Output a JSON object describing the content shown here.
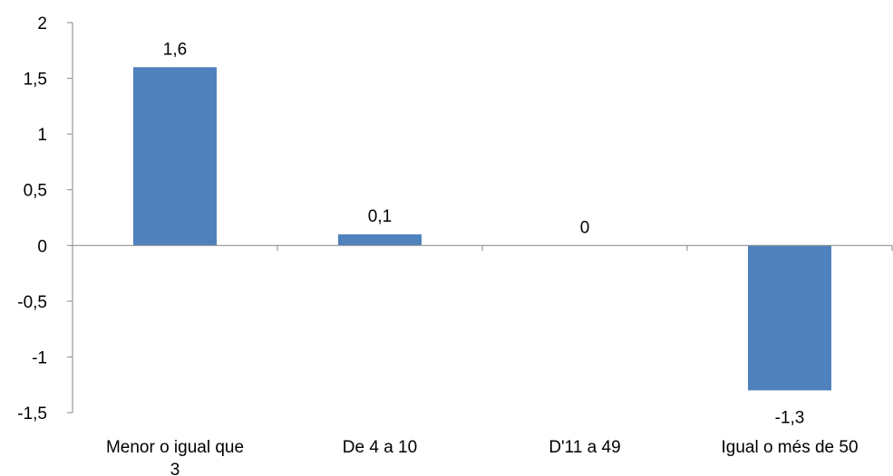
{
  "chart_data": {
    "type": "bar",
    "title": "",
    "xlabel": "",
    "ylabel": "",
    "categories": [
      "Menor o igual que 3",
      "De 4 a 10",
      "D'11 a 49",
      "Igual o més de 50"
    ],
    "category_lines": [
      [
        "Menor o igual que",
        "3"
      ],
      [
        "De 4 a 10"
      ],
      [
        "D'11 a 49"
      ],
      [
        "Igual o més de 50"
      ]
    ],
    "values": [
      1.6,
      0.1,
      0,
      -1.3
    ],
    "data_labels": [
      "1,6",
      "0,1",
      "0",
      "-1,3"
    ],
    "ylim": [
      -1.5,
      2
    ],
    "yticks": [
      2,
      1.5,
      1,
      0.5,
      0,
      -0.5,
      -1,
      -1.5
    ],
    "ytick_labels": [
      "2",
      "1,5",
      "1",
      "0,5",
      "0",
      "-0,5",
      "-1",
      "-1,5"
    ],
    "grid": false,
    "legend": "none",
    "bar_color": "#4F81BD",
    "axis_color": "#868686"
  }
}
